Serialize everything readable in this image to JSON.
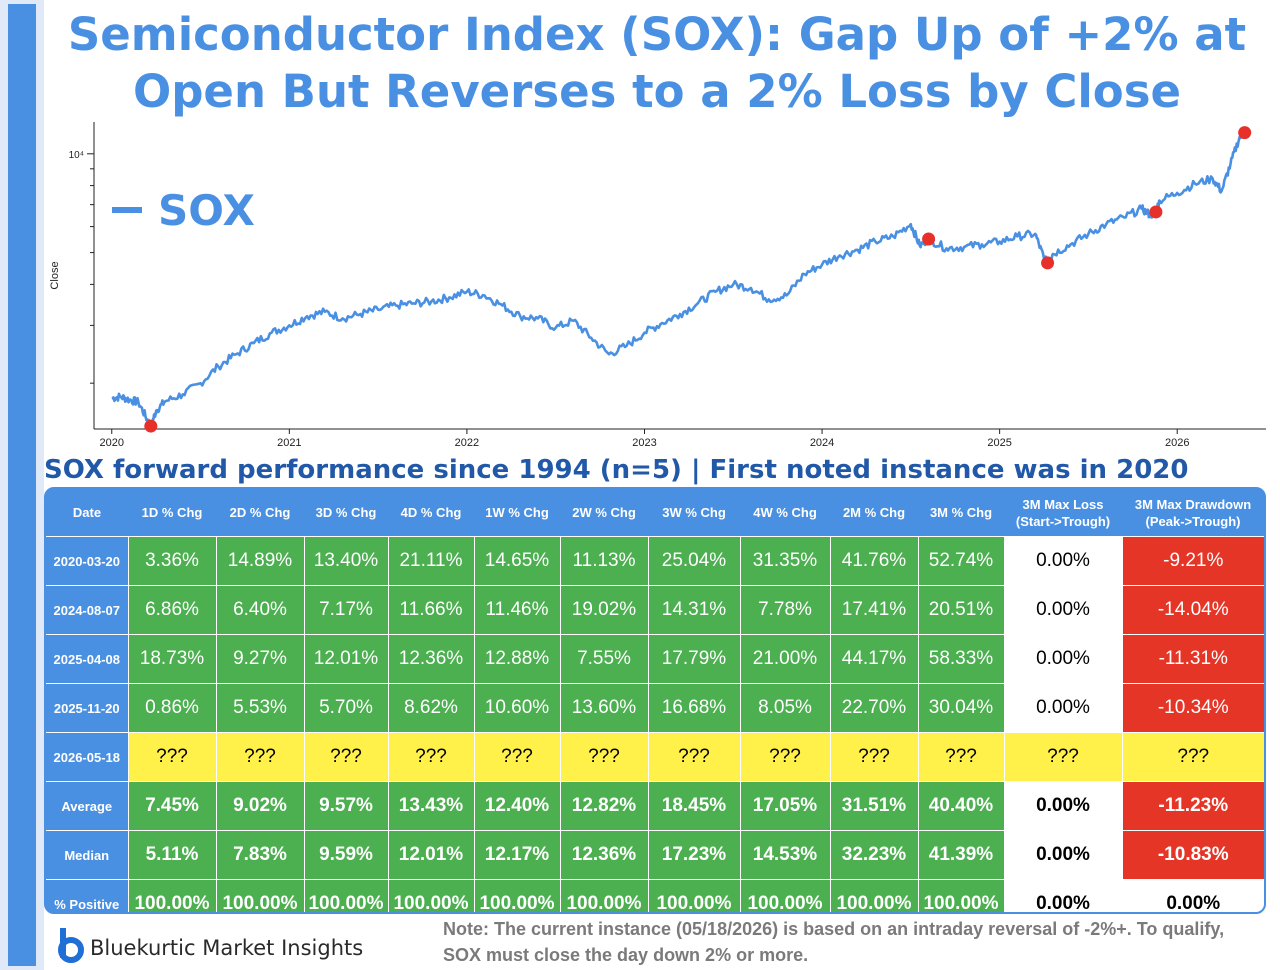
{
  "title_line1": "Semiconductor Index (SOX): Gap Up of +2% at",
  "title_line2": "Open But Reverses to a 2% Loss by Close",
  "chart_data": {
    "type": "line",
    "series": [
      {
        "name": "SOX"
      }
    ],
    "ylabel": "Close",
    "yscale": "log",
    "ytick_label": "10⁴",
    "xlim": [
      2019.9,
      2026.5
    ],
    "ylim": [
      1450,
      12500
    ],
    "xticks": [
      "2020",
      "2021",
      "2022",
      "2023",
      "2024",
      "2025",
      "2026"
    ],
    "x": [
      2020.0,
      2020.05,
      2020.1,
      2020.15,
      2020.2,
      2020.22,
      2020.25,
      2020.3,
      2020.4,
      2020.5,
      2020.6,
      2020.7,
      2020.8,
      2020.9,
      2021.0,
      2021.1,
      2021.2,
      2021.3,
      2021.4,
      2021.5,
      2021.6,
      2021.7,
      2021.8,
      2021.9,
      2022.0,
      2022.1,
      2022.2,
      2022.3,
      2022.4,
      2022.5,
      2022.6,
      2022.7,
      2022.8,
      2022.9,
      2023.0,
      2023.1,
      2023.2,
      2023.3,
      2023.4,
      2023.5,
      2023.6,
      2023.7,
      2023.8,
      2023.9,
      2024.0,
      2024.1,
      2024.2,
      2024.3,
      2024.4,
      2024.5,
      2024.55,
      2024.6,
      2024.7,
      2024.8,
      2024.9,
      2025.0,
      2025.1,
      2025.2,
      2025.25,
      2025.27,
      2025.3,
      2025.4,
      2025.5,
      2025.6,
      2025.7,
      2025.8,
      2025.85,
      2025.88,
      2025.9,
      2026.0,
      2026.1,
      2026.2,
      2026.25,
      2026.3,
      2026.35,
      2026.38
    ],
    "values": [
      1800,
      1820,
      1780,
      1750,
      1550,
      1480,
      1650,
      1760,
      1850,
      2000,
      2250,
      2450,
      2650,
      2850,
      3000,
      3200,
      3300,
      3150,
      3250,
      3350,
      3450,
      3500,
      3550,
      3650,
      3800,
      3700,
      3450,
      3200,
      3150,
      2950,
      3100,
      2750,
      2450,
      2600,
      2850,
      3050,
      3250,
      3500,
      3800,
      4000,
      3900,
      3600,
      3700,
      4300,
      4600,
      4900,
      5100,
      5400,
      5600,
      6100,
      5250,
      5500,
      5150,
      5200,
      5300,
      5400,
      5600,
      5700,
      4800,
      4650,
      4950,
      5300,
      5700,
      6100,
      6400,
      6800,
      6500,
      6650,
      7200,
      7600,
      8100,
      8400,
      7700,
      9300,
      11200,
      11600
    ],
    "events": [
      {
        "x": 2020.22,
        "y": 1480
      },
      {
        "x": 2024.6,
        "y": 5500
      },
      {
        "x": 2025.27,
        "y": 4650
      },
      {
        "x": 2025.88,
        "y": 6650
      },
      {
        "x": 2026.38,
        "y": 11600
      }
    ]
  },
  "subtitle": "SOX forward performance since 1994 (n=5) | First noted instance was in 2020",
  "table": {
    "headers": [
      "Date",
      "1D % Chg",
      "2D % Chg",
      "3D % Chg",
      "4D % Chg",
      "1W % Chg",
      "2W % Chg",
      "3W % Chg",
      "4W % Chg",
      "2M % Chg",
      "3M % Chg"
    ],
    "header_max_loss_line1": "3M Max Loss",
    "header_max_loss_line2": "(Start->Trough)",
    "header_max_dd_line1": "3M Max Drawdown",
    "header_max_dd_line2": "(Peak->Trough)",
    "rows": [
      {
        "date": "2020-03-20",
        "cells": [
          "3.36%",
          "14.89%",
          "13.40%",
          "21.11%",
          "14.65%",
          "11.13%",
          "25.04%",
          "31.35%",
          "41.76%",
          "52.74%"
        ],
        "max_loss": "0.00%",
        "max_dd": "-9.21%"
      },
      {
        "date": "2024-08-07",
        "cells": [
          "6.86%",
          "6.40%",
          "7.17%",
          "11.66%",
          "11.46%",
          "19.02%",
          "14.31%",
          "7.78%",
          "17.41%",
          "20.51%"
        ],
        "max_loss": "0.00%",
        "max_dd": "-14.04%"
      },
      {
        "date": "2025-04-08",
        "cells": [
          "18.73%",
          "9.27%",
          "12.01%",
          "12.36%",
          "12.88%",
          "7.55%",
          "17.79%",
          "21.00%",
          "44.17%",
          "58.33%"
        ],
        "max_loss": "0.00%",
        "max_dd": "-11.31%"
      },
      {
        "date": "2025-11-20",
        "cells": [
          "0.86%",
          "5.53%",
          "5.70%",
          "8.62%",
          "10.60%",
          "13.60%",
          "16.68%",
          "8.05%",
          "22.70%",
          "30.04%"
        ],
        "max_loss": "0.00%",
        "max_dd": "-10.34%"
      }
    ],
    "pending_row": {
      "date": "2026-05-18",
      "cells": [
        "???",
        "???",
        "???",
        "???",
        "???",
        "???",
        "???",
        "???",
        "???",
        "???",
        "???",
        "???"
      ]
    },
    "summary": [
      {
        "label": "Average",
        "cells": [
          "7.45%",
          "9.02%",
          "9.57%",
          "13.43%",
          "12.40%",
          "12.82%",
          "18.45%",
          "17.05%",
          "31.51%",
          "40.40%"
        ],
        "max_loss": "0.00%",
        "max_dd": "-11.23%"
      },
      {
        "label": "Median",
        "cells": [
          "5.11%",
          "7.83%",
          "9.59%",
          "12.01%",
          "12.17%",
          "12.36%",
          "17.23%",
          "14.53%",
          "32.23%",
          "41.39%"
        ],
        "max_loss": "0.00%",
        "max_dd": "-10.83%"
      },
      {
        "label": "% Positive",
        "cells": [
          "100.00%",
          "100.00%",
          "100.00%",
          "100.00%",
          "100.00%",
          "100.00%",
          "100.00%",
          "100.00%",
          "100.00%",
          "100.00%"
        ],
        "max_loss": "0.00%",
        "max_dd": "0.00%"
      }
    ]
  },
  "footer": {
    "brand": "Bluekurtic Market Insights",
    "note": "Note: The current instance (05/18/2026) is based on an intraday reversal of -2%+. To qualify, SOX must close the day down 2% or more."
  },
  "colors": {
    "accent": "#4a90e2",
    "positive": "#4caf50",
    "negative": "#e53527",
    "pending": "#fff04a",
    "event_dot": "#e8302a"
  }
}
